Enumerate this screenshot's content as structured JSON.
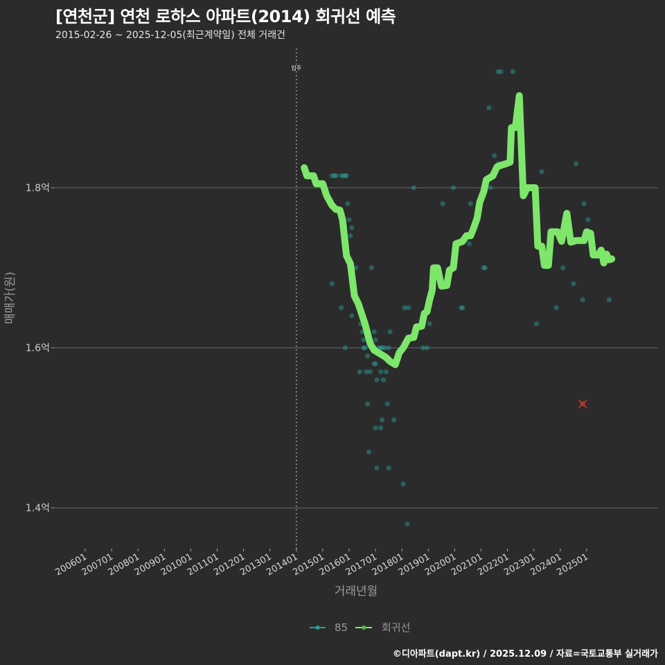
{
  "header": {
    "title": "[연천군] 연천 로하스 아파트(2014) 회귀선 예측",
    "subtitle": "2015-02-26 ~ 2025-12-05(최근계약일) 전체 거래건"
  },
  "footer": {
    "caption": "©디아파트(dapt.kr) / 2025.12.09 / 자료=국토교통부 실거래가"
  },
  "colors": {
    "background": "#2b2b2c",
    "grid": "#6a6a6a",
    "regression": "#7ee66b",
    "scatter": "#2aa198",
    "outlier": "#c0392b",
    "vline": "#bfbfbf"
  },
  "chart_data": {
    "type": "scatter",
    "title": "[연천군] 연천 로하스 아파트(2014) 회귀선 예측",
    "subtitle": "2015-02-26 ~ 2025-12-05(최근계약일) 전체 거래건",
    "xlabel": "거래년월",
    "ylabel": "매매가(원)",
    "x_ticks": [
      "200601",
      "200701",
      "200801",
      "200901",
      "201001",
      "201101",
      "201201",
      "201301",
      "201401",
      "201501",
      "201601",
      "201701",
      "201801",
      "201901",
      "202001",
      "202101",
      "202201",
      "202301",
      "202401",
      "202501"
    ],
    "y_ticks": [
      {
        "value": 1.8,
        "label": "1.8억"
      },
      {
        "value": 1.6,
        "label": "1.6억"
      },
      {
        "value": 1.4,
        "label": "1.4억"
      }
    ],
    "ylim": [
      1.35,
      1.96
    ],
    "xlim": [
      2005.5,
      2026.2
    ],
    "grid": "horizontal",
    "legend": {
      "position": "bottom",
      "entries": [
        {
          "label": "85",
          "color": "#2aa198"
        },
        {
          "label": "회귀선",
          "color": "#7ee66b"
        }
      ]
    },
    "annotations": [
      {
        "type": "vline",
        "x": 2014.0,
        "label": "입주"
      }
    ],
    "series": [
      {
        "name": "85",
        "kind": "scatter",
        "points": [
          [
            2015.35,
            1.815
          ],
          [
            2015.45,
            1.815
          ],
          [
            2015.5,
            1.815
          ],
          [
            2015.7,
            1.815
          ],
          [
            2015.78,
            1.815
          ],
          [
            2015.85,
            1.815
          ],
          [
            2015.9,
            1.815
          ],
          [
            2015.35,
            1.68
          ],
          [
            2015.7,
            1.65
          ],
          [
            2015.85,
            1.6
          ],
          [
            2016.1,
            1.64
          ],
          [
            2015.95,
            1.78
          ],
          [
            2016.0,
            1.76
          ],
          [
            2016.05,
            1.74
          ],
          [
            2016.1,
            1.75
          ],
          [
            2016.25,
            1.7
          ],
          [
            2016.3,
            1.66
          ],
          [
            2016.45,
            1.63
          ],
          [
            2016.5,
            1.62
          ],
          [
            2016.55,
            1.61
          ],
          [
            2016.55,
            1.6
          ],
          [
            2016.6,
            1.6
          ],
          [
            2016.7,
            1.59
          ],
          [
            2016.65,
            1.57
          ],
          [
            2016.8,
            1.57
          ],
          [
            2016.95,
            1.58
          ],
          [
            2017.0,
            1.58
          ],
          [
            2017.05,
            1.56
          ],
          [
            2016.85,
            1.7
          ],
          [
            2016.95,
            1.62
          ],
          [
            2017.0,
            1.61
          ],
          [
            2017.1,
            1.6
          ],
          [
            2017.2,
            1.6
          ],
          [
            2017.25,
            1.6
          ],
          [
            2017.35,
            1.6
          ],
          [
            2017.2,
            1.57
          ],
          [
            2017.3,
            1.56
          ],
          [
            2017.4,
            1.57
          ],
          [
            2017.5,
            1.6
          ],
          [
            2017.55,
            1.62
          ],
          [
            2017.45,
            1.53
          ],
          [
            2016.4,
            1.57
          ],
          [
            2016.7,
            1.53
          ],
          [
            2016.75,
            1.47
          ],
          [
            2017.0,
            1.5
          ],
          [
            2017.05,
            1.45
          ],
          [
            2017.25,
            1.51
          ],
          [
            2017.2,
            1.5
          ],
          [
            2017.5,
            1.45
          ],
          [
            2017.7,
            1.51
          ],
          [
            2018.05,
            1.43
          ],
          [
            2018.2,
            1.38
          ],
          [
            2018.1,
            1.65
          ],
          [
            2018.25,
            1.65
          ],
          [
            2018.45,
            1.8
          ],
          [
            2018.8,
            1.6
          ],
          [
            2018.95,
            1.6
          ],
          [
            2019.05,
            1.63
          ],
          [
            2019.55,
            1.78
          ],
          [
            2019.95,
            1.8
          ],
          [
            2020.25,
            1.65
          ],
          [
            2020.3,
            1.65
          ],
          [
            2020.55,
            1.73
          ],
          [
            2020.6,
            1.78
          ],
          [
            2021.1,
            1.7
          ],
          [
            2021.15,
            1.7
          ],
          [
            2021.1,
            1.8
          ],
          [
            2021.35,
            1.8
          ],
          [
            2021.3,
            1.9
          ],
          [
            2021.65,
            1.83
          ],
          [
            2021.5,
            1.84
          ],
          [
            2021.95,
            1.83
          ],
          [
            2021.65,
            1.945
          ],
          [
            2021.75,
            1.945
          ],
          [
            2022.2,
            1.945
          ],
          [
            2022.55,
            1.84
          ],
          [
            2023.1,
            1.63
          ],
          [
            2023.3,
            1.82
          ],
          [
            2023.85,
            1.65
          ],
          [
            2024.1,
            1.7
          ],
          [
            2024.5,
            1.68
          ],
          [
            2024.6,
            1.83
          ],
          [
            2024.85,
            1.66
          ],
          [
            2024.9,
            1.78
          ],
          [
            2025.05,
            1.76
          ],
          [
            2025.85,
            1.66
          ]
        ]
      },
      {
        "name": "회귀선",
        "kind": "line",
        "points": [
          [
            2014.3,
            1.825
          ],
          [
            2014.4,
            1.815
          ],
          [
            2014.65,
            1.815
          ],
          [
            2014.75,
            1.805
          ],
          [
            2015.0,
            1.805
          ],
          [
            2015.15,
            1.79
          ],
          [
            2015.35,
            1.778
          ],
          [
            2015.5,
            1.773
          ],
          [
            2015.65,
            1.772
          ],
          [
            2015.75,
            1.76
          ],
          [
            2015.9,
            1.715
          ],
          [
            2016.05,
            1.705
          ],
          [
            2016.2,
            1.665
          ],
          [
            2016.35,
            1.655
          ],
          [
            2016.6,
            1.63
          ],
          [
            2016.8,
            1.605
          ],
          [
            2016.95,
            1.597
          ],
          [
            2017.2,
            1.592
          ],
          [
            2017.4,
            1.588
          ],
          [
            2017.55,
            1.583
          ],
          [
            2017.75,
            1.579
          ],
          [
            2017.9,
            1.594
          ],
          [
            2018.05,
            1.6
          ],
          [
            2018.25,
            1.612
          ],
          [
            2018.45,
            1.613
          ],
          [
            2018.55,
            1.626
          ],
          [
            2018.75,
            1.627
          ],
          [
            2018.85,
            1.643
          ],
          [
            2018.95,
            1.645
          ],
          [
            2019.05,
            1.66
          ],
          [
            2019.15,
            1.672
          ],
          [
            2019.2,
            1.7
          ],
          [
            2019.35,
            1.7
          ],
          [
            2019.5,
            1.677
          ],
          [
            2019.7,
            1.678
          ],
          [
            2019.8,
            1.697
          ],
          [
            2019.95,
            1.7
          ],
          [
            2020.05,
            1.73
          ],
          [
            2020.3,
            1.733
          ],
          [
            2020.45,
            1.74
          ],
          [
            2020.6,
            1.74
          ],
          [
            2020.7,
            1.748
          ],
          [
            2020.85,
            1.762
          ],
          [
            2020.95,
            1.782
          ],
          [
            2021.1,
            1.795
          ],
          [
            2021.2,
            1.81
          ],
          [
            2021.45,
            1.815
          ],
          [
            2021.6,
            1.826
          ],
          [
            2021.75,
            1.828
          ],
          [
            2021.95,
            1.83
          ],
          [
            2022.1,
            1.832
          ],
          [
            2022.15,
            1.875
          ],
          [
            2022.3,
            1.875
          ],
          [
            2022.45,
            1.915
          ],
          [
            2022.6,
            1.79
          ],
          [
            2022.75,
            1.8
          ],
          [
            2023.05,
            1.8
          ],
          [
            2023.15,
            1.727
          ],
          [
            2023.3,
            1.727
          ],
          [
            2023.4,
            1.703
          ],
          [
            2023.55,
            1.703
          ],
          [
            2023.65,
            1.745
          ],
          [
            2023.9,
            1.745
          ],
          [
            2024.05,
            1.733
          ],
          [
            2024.25,
            1.768
          ],
          [
            2024.4,
            1.732
          ],
          [
            2024.6,
            1.734
          ],
          [
            2024.9,
            1.734
          ],
          [
            2025.0,
            1.745
          ],
          [
            2025.15,
            1.743
          ],
          [
            2025.25,
            1.716
          ],
          [
            2025.45,
            1.716
          ],
          [
            2025.55,
            1.722
          ],
          [
            2025.65,
            1.706
          ],
          [
            2025.75,
            1.717
          ],
          [
            2025.85,
            1.71
          ],
          [
            2025.95,
            1.711
          ]
        ]
      },
      {
        "name": "outlier",
        "kind": "marker",
        "points": [
          [
            2024.85,
            1.53
          ]
        ]
      }
    ]
  },
  "axes": {
    "xlabel": "거래년월",
    "ylabel": "매매가(원)"
  },
  "legend": [
    {
      "label": "85",
      "color": "#2aa198"
    },
    {
      "label": "회귀선",
      "color": "#7ee66b"
    }
  ]
}
